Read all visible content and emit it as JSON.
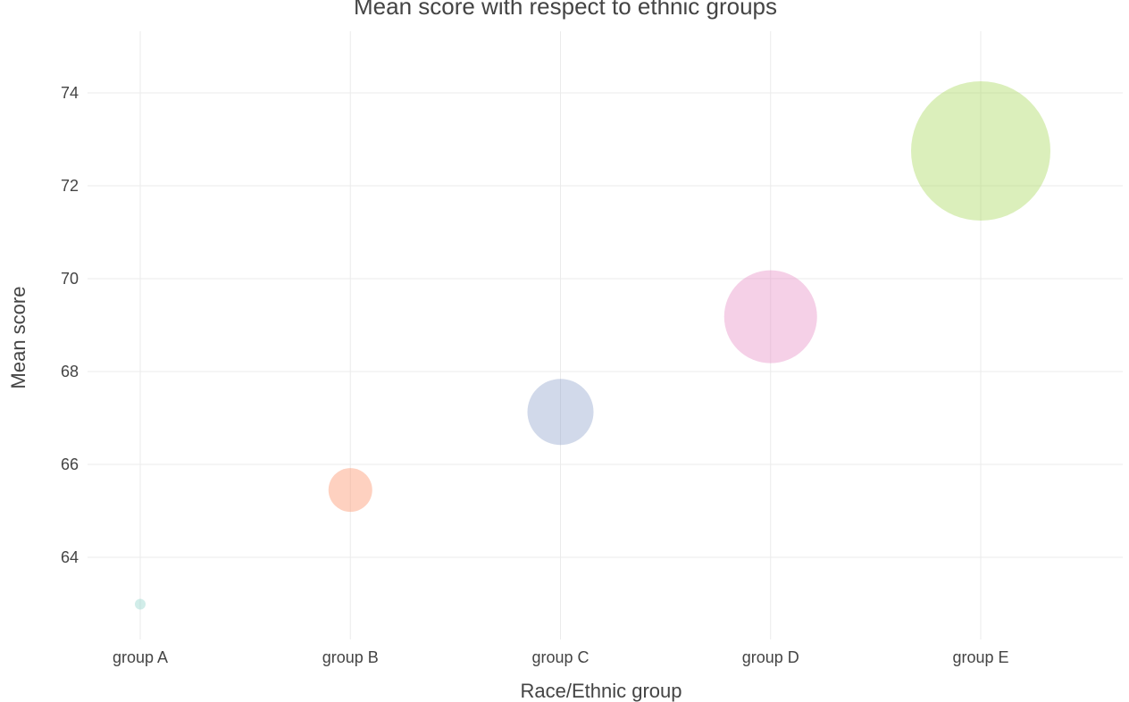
{
  "chart_data": {
    "type": "scatter",
    "title": "Mean score with respect to ethnic groups",
    "xlabel": "Race/Ethnic group",
    "ylabel": "Mean score",
    "categories": [
      "group A",
      "group B",
      "group C",
      "group D",
      "group E"
    ],
    "ylim": [
      62.2,
      75.3
    ],
    "yticks": [
      64,
      66,
      68,
      70,
      72,
      74
    ],
    "grid": true,
    "legend": "none",
    "points": [
      {
        "x": "group A",
        "y": 62.99,
        "size_rank": 1,
        "color": "#8dd3c7"
      },
      {
        "x": "group B",
        "y": 65.45,
        "size_rank": 2,
        "color": "#fc8d62"
      },
      {
        "x": "group C",
        "y": 67.13,
        "size_rank": 3,
        "color": "#8da0cb"
      },
      {
        "x": "group D",
        "y": 69.18,
        "size_rank": 4,
        "color": "#e78ac3"
      },
      {
        "x": "group E",
        "y": 72.75,
        "size_rank": 5,
        "color": "#a6d854"
      }
    ],
    "marker_opacity": 0.4
  }
}
